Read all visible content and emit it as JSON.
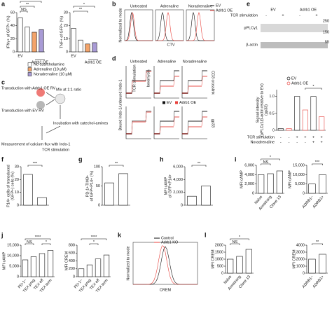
{
  "panel_letters": [
    "a",
    "b",
    "c",
    "d",
    "e",
    "f",
    "g",
    "h",
    "i",
    "j",
    "k",
    "l"
  ],
  "legend_a": [
    {
      "name": "No catecholamine",
      "color": "#ffffff"
    },
    {
      "name": "Adrenaline (10 µM)",
      "color": "#f4a46a"
    },
    {
      "name": "Noradrenaline (10 µM)",
      "color": "#a99bd6"
    }
  ],
  "legend_ev_oe": [
    {
      "name": "EV",
      "color": "#111111"
    },
    {
      "name": "Adrb1 OE",
      "color": "#e8423c"
    }
  ],
  "b": {
    "titles": [
      "Untreated",
      "Adrenaline",
      "Noradrenaline"
    ],
    "xlabel": "CTV",
    "ylabel": "Normalized to mode"
  },
  "d": {
    "titles": [
      "Untreated",
      "Adrenaline",
      "Noradrenaline"
    ],
    "ylabel": "Bound Indo-1/unbound Indo-1",
    "row_labels": [
      "CD3 crosslink",
      "gp33"
    ],
    "stim": "TCR stimulation",
    "iono": "Ionomycin"
  },
  "c": {
    "steps": [
      "Transduction with Adrb1 OE RV",
      "Transduction with EV RV",
      "Mix at 1:1 ratio",
      "Incubation with catechol-amines",
      "Measurement of calcium flux with Indo-1",
      "TCR stimulation"
    ]
  },
  "e_blot": {
    "groups": [
      "EV",
      "Adrb1 OE"
    ],
    "row": "TCR stimulation",
    "signs": [
      "-",
      "+",
      "-",
      "+"
    ],
    "bands": [
      "pPLCγ1",
      "β-actin"
    ],
    "sizes": [
      "250",
      "150",
      "55"
    ]
  },
  "e_rows": [
    {
      "label": "TCR stimulation",
      "signs": [
        "-",
        "-",
        "+",
        "+",
        "+",
        "+"
      ]
    },
    {
      "label": "Noradrenaline",
      "signs": [
        "-",
        "-",
        "-",
        "-",
        "+",
        "+"
      ]
    }
  ],
  "k": {
    "xlabel": "CREM",
    "ylabel": "Normalized to mode",
    "legend": [
      {
        "name": "Control",
        "color": "#111111"
      },
      {
        "name": "Adrb1 KO",
        "color": "#e8423c"
      }
    ]
  },
  "group_label_a": "Adrb1 OE",
  "chart_data": [
    {
      "type": "bar",
      "ylabel": [
        "IFNγ+ of GFP+ (%)"
      ],
      "categories": [
        "EV",
        null,
        null,
        null
      ],
      "values": [
        52,
        38,
        30,
        34
      ],
      "colors": [
        "#ffffff",
        "#ffffff",
        "#f4a46a",
        "#a99bd6"
      ],
      "ylim": [
        0,
        60
      ],
      "yticks": [
        0,
        20,
        40,
        60
      ],
      "annotations": [
        "NS",
        "**",
        "**"
      ]
    },
    {
      "type": "bar",
      "ylabel": [
        "TNF+ of GFP+ (%)"
      ],
      "categories": [
        "EV",
        null,
        null,
        null
      ],
      "values": [
        18,
        9,
        6,
        7
      ],
      "colors": [
        "#ffffff",
        "#ffffff",
        "#f4a46a",
        "#a99bd6"
      ],
      "ylim": [
        0,
        30
      ],
      "yticks": [
        0,
        10,
        20,
        30
      ],
      "annotations": [
        "**",
        "*"
      ]
    },
    {
      "type": "bar",
      "ylabel": [
        "Signal intensity",
        "(pPLCγ1/β-actin relative to EV)",
        "(gp33)"
      ],
      "categories": [
        null,
        null,
        null,
        null,
        null,
        null
      ],
      "values": [
        0.05,
        0.05,
        1,
        0.6,
        1,
        0.4
      ],
      "colors": [
        "#ffffff",
        "#ffffff",
        "#ffffff",
        "#ffffff",
        "#ffffff",
        "#ffffff"
      ],
      "ylim": [
        0,
        1.2
      ],
      "yticks": [
        0,
        0.5,
        {
          "value": 1,
          "label": "1.0"
        }
      ],
      "annotations": [
        "*"
      ]
    },
    {
      "type": "bar",
      "ylabel": [
        "P14+ cells of transduced",
        "(GFP+) cells (%)"
      ],
      "categories": [
        null,
        null
      ],
      "values": [
        24,
        6
      ],
      "colors": [
        "#ffffff",
        "#ffffff"
      ],
      "ylim": [
        0,
        30
      ],
      "yticks": [
        0,
        10,
        20,
        30
      ],
      "annotations": [
        "***"
      ]
    },
    {
      "type": "bar",
      "ylabel": [
        "PD-1+TIM3+",
        "of GFP+P14+ (%)"
      ],
      "categories": [
        null,
        null
      ],
      "values": [
        58,
        82
      ],
      "colors": [
        "#ffffff",
        "#ffffff"
      ],
      "ylim": [
        0,
        100
      ],
      "yticks": [
        0,
        50,
        100
      ],
      "annotations": [
        "**"
      ]
    },
    {
      "type": "bar",
      "ylabel": [
        "MFI cAMP",
        "of GFP+P14+"
      ],
      "categories": [
        null,
        null
      ],
      "values": [
        1400,
        3000
      ],
      "colors": [
        "#ffffff",
        "#ffffff"
      ],
      "ylim": [
        0,
        6000
      ],
      "yticks": [
        0,
        {
          "value": 2000,
          "label": "2,000"
        },
        {
          "value": 4000,
          "label": "4,000"
        },
        {
          "value": 6000,
          "label": "6,000"
        }
      ],
      "annotations": [
        "**"
      ]
    },
    {
      "type": "bar",
      "ylabel": [
        "MFI cAMP"
      ],
      "categories": [
        "Naive",
        "Armstrong",
        "Clone 13"
      ],
      "values": [
        4000,
        4200,
        4800
      ],
      "colors": [
        "#ffffff",
        "#ffffff",
        "#ffffff"
      ],
      "ylim": [
        0,
        6000
      ],
      "yticks": [
        0,
        {
          "value": 2000,
          "label": "2,000"
        },
        {
          "value": 4000,
          "label": "4,000"
        },
        {
          "value": 6000,
          "label": "6,000"
        }
      ],
      "annotations": [
        "NS",
        "*"
      ]
    },
    {
      "type": "bar",
      "ylabel": [
        "MFI cAMP"
      ],
      "categories": [
        "ADRB1−",
        "ADRB1+"
      ],
      "values": [
        5000,
        10000
      ],
      "colors": [
        "#ffffff",
        "#ffffff"
      ],
      "ylim": [
        0,
        15000
      ],
      "yticks": [
        0,
        {
          "value": 5000,
          "label": "5,000"
        },
        {
          "value": 10000,
          "label": "10,000"
        },
        {
          "value": 15000,
          "label": "15,000"
        }
      ],
      "annotations": [
        "***"
      ]
    },
    {
      "type": "bar",
      "ylabel": [
        "MFI cAMP"
      ],
      "categories": [
        "PD-1−",
        "TEX prog",
        "TEX eff",
        "TEX term"
      ],
      "values": [
        8000,
        9500,
        11000,
        12500
      ],
      "colors": [
        "#ffffff",
        "#ffffff",
        "#ffffff",
        "#ffffff"
      ],
      "ylim": [
        0,
        15000
      ],
      "yticks": [
        0,
        {
          "value": 5000,
          "label": "5,000"
        },
        {
          "value": 10000,
          "label": "10,000"
        },
        {
          "value": 15000,
          "label": "15,000"
        }
      ],
      "annotations": [
        "NS",
        "****",
        "*"
      ]
    },
    {
      "type": "bar",
      "ylabel": [
        "MFI CREM"
      ],
      "categories": [
        "PD-1−",
        "TEX prog",
        "TEX eff",
        "TEX term"
      ],
      "values": [
        200,
        300,
        450,
        550
      ],
      "colors": [
        "#ffffff",
        "#ffffff",
        "#ffffff",
        "#ffffff"
      ],
      "ylim": [
        0,
        800
      ],
      "yticks": [
        0,
        200,
        400,
        600,
        800
      ],
      "annotations": [
        "*",
        "****"
      ]
    },
    {
      "type": "bar",
      "ylabel": [
        "MFI CREM"
      ],
      "categories": [
        "Naive",
        "Armstrong",
        "Clone 13"
      ],
      "values": [
        1000,
        1200,
        1700
      ],
      "colors": [
        "#ffffff",
        "#ffffff",
        "#ffffff"
      ],
      "ylim": [
        0,
        2000
      ],
      "yticks": [
        0,
        500,
        1000,
        1500,
        2000
      ],
      "annotations": [
        "NS",
        "*"
      ]
    },
    {
      "type": "bar",
      "ylabel": [
        "MFI CREM"
      ],
      "categories": [
        "ADRB1−",
        "ADRB1+"
      ],
      "values": [
        2000,
        2700
      ],
      "colors": [
        "#ffffff",
        "#ffffff"
      ],
      "ylim": [
        0,
        4000
      ],
      "yticks": [
        0,
        1000,
        2000,
        3000,
        4000
      ],
      "annotations": [
        "**"
      ]
    }
  ]
}
